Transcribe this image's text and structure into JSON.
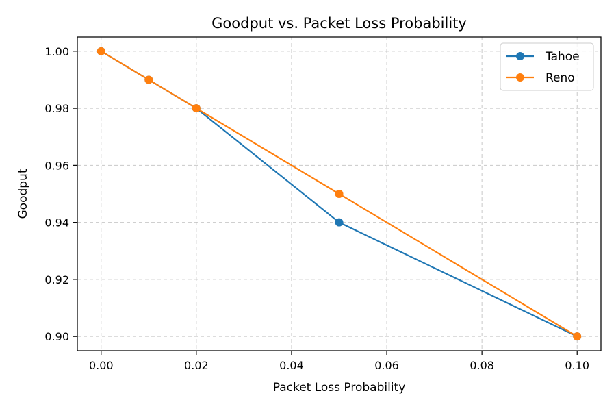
{
  "chart_data": {
    "type": "line",
    "title": "Goodput vs. Packet Loss Probability",
    "xlabel": "Packet Loss Probability",
    "ylabel": "Goodput",
    "xlim": [
      -0.005,
      0.105
    ],
    "ylim": [
      0.895,
      1.005
    ],
    "x_ticks": [
      0.0,
      0.02,
      0.04,
      0.06,
      0.08,
      0.1
    ],
    "x_tick_labels": [
      "0.00",
      "0.02",
      "0.04",
      "0.06",
      "0.08",
      "0.10"
    ],
    "y_ticks": [
      0.9,
      0.92,
      0.94,
      0.96,
      0.98,
      1.0
    ],
    "y_tick_labels": [
      "0.90",
      "0.92",
      "0.94",
      "0.96",
      "0.98",
      "1.00"
    ],
    "grid": true,
    "legend_position": "top-right",
    "series": [
      {
        "name": "Tahoe",
        "color": "#1f77b4",
        "marker": "circle",
        "x": [
          0.0,
          0.01,
          0.02,
          0.05,
          0.1
        ],
        "y": [
          1.0,
          0.99,
          0.98,
          0.94,
          0.9
        ]
      },
      {
        "name": "Reno",
        "color": "#ff7f0e",
        "marker": "circle",
        "x": [
          0.0,
          0.01,
          0.02,
          0.05,
          0.1
        ],
        "y": [
          1.0,
          0.99,
          0.98,
          0.95,
          0.9
        ]
      }
    ]
  }
}
